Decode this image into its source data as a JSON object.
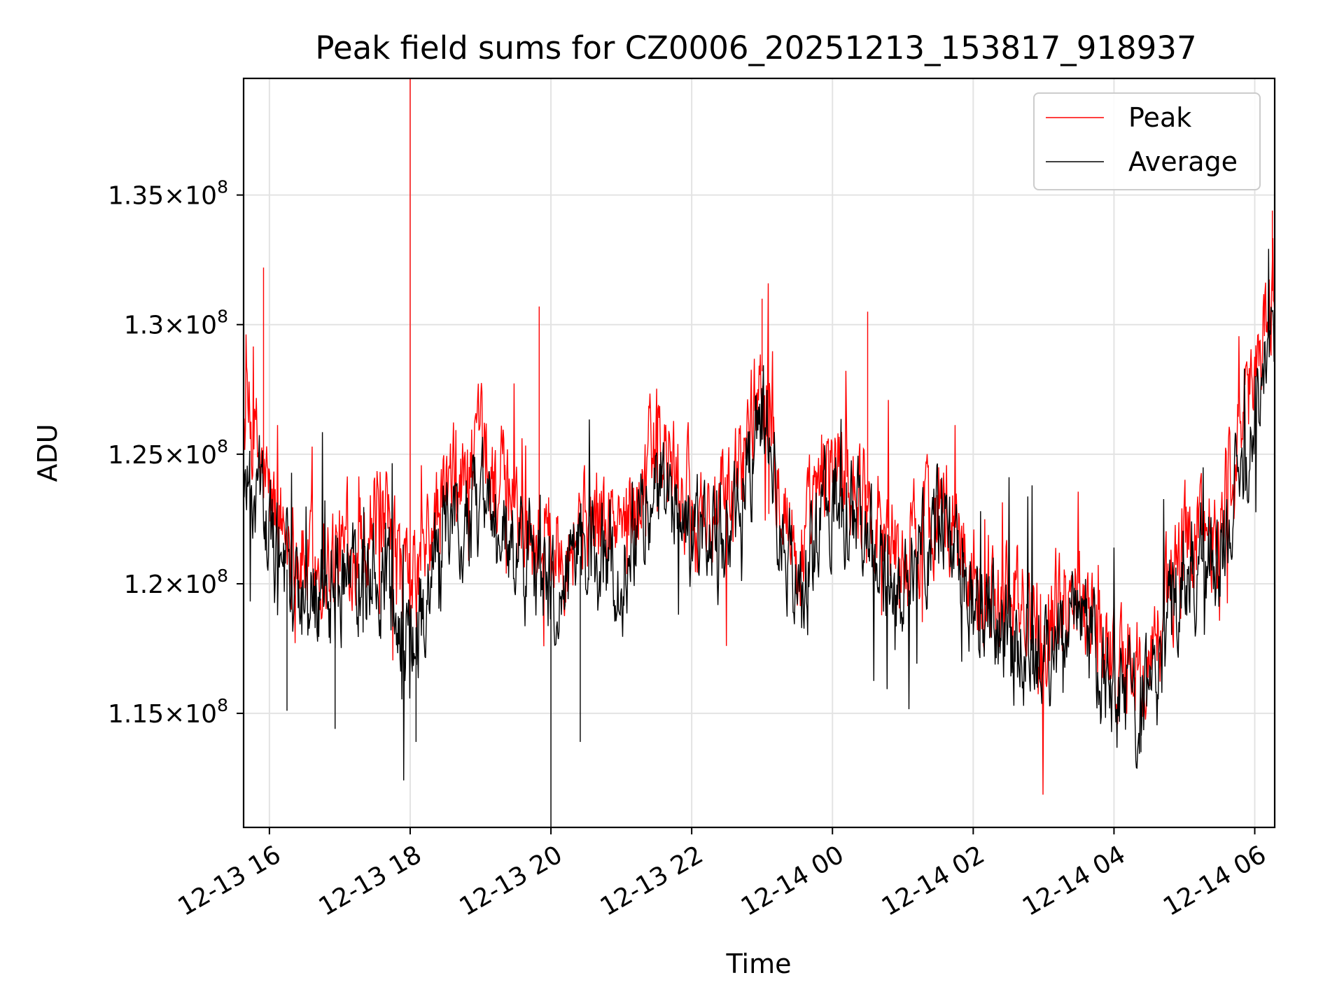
{
  "chart_data": {
    "type": "line",
    "title": "Peak field sums for CZ0006_20251213_153817_918937",
    "xlabel": "Time",
    "ylabel": "ADU",
    "x_start": "2025-12-13T15:38",
    "x_end": "2025-12-14T06:17",
    "xlim": [
      "2025-12-13T15:38",
      "2025-12-14T06:17"
    ],
    "ylim": [
      110600000,
      139500000
    ],
    "x_ticks": [
      {
        "label": "12-13 16",
        "value": "2025-12-13T16:00"
      },
      {
        "label": "12-13 18",
        "value": "2025-12-13T18:00"
      },
      {
        "label": "12-13 20",
        "value": "2025-12-13T20:00"
      },
      {
        "label": "12-13 22",
        "value": "2025-12-13T22:00"
      },
      {
        "label": "12-14 00",
        "value": "2025-12-14T00:00"
      },
      {
        "label": "12-14 02",
        "value": "2025-12-14T02:00"
      },
      {
        "label": "12-14 04",
        "value": "2025-12-14T04:00"
      },
      {
        "label": "12-14 06",
        "value": "2025-12-14T06:00"
      }
    ],
    "y_ticks": [
      {
        "mantissa": "1.15",
        "exponent": "8",
        "value": 115000000
      },
      {
        "mantissa": "1.2",
        "exponent": "8",
        "value": 120000000
      },
      {
        "mantissa": "1.25",
        "exponent": "8",
        "value": 125000000
      },
      {
        "mantissa": "1.3",
        "exponent": "8",
        "value": 130000000
      },
      {
        "mantissa": "1.35",
        "exponent": "8",
        "value": 135000000
      }
    ],
    "y_tick_times": "×10",
    "grid": true,
    "legend_position": "top-right",
    "series": [
      {
        "name": "Peak",
        "color": "#ff0000",
        "x": [
          "2025-12-13T15:38",
          "2025-12-13T16:00",
          "2025-12-13T16:30",
          "2025-12-13T17:00",
          "2025-12-13T17:30",
          "2025-12-13T18:00",
          "2025-12-13T18:30",
          "2025-12-13T19:00",
          "2025-12-13T19:30",
          "2025-12-13T20:00",
          "2025-12-13T20:30",
          "2025-12-13T21:00",
          "2025-12-13T21:30",
          "2025-12-13T22:00",
          "2025-12-13T22:30",
          "2025-12-13T23:00",
          "2025-12-13T23:30",
          "2025-12-14T00:00",
          "2025-12-14T00:30",
          "2025-12-14T01:00",
          "2025-12-14T01:30",
          "2025-12-14T02:00",
          "2025-12-14T02:30",
          "2025-12-14T03:00",
          "2025-12-14T03:30",
          "2025-12-14T04:00",
          "2025-12-14T04:30",
          "2025-12-14T05:00",
          "2025-12-14T05:30",
          "2025-12-14T06:00",
          "2025-12-14T06:17"
        ],
        "values": [
          126900000,
          123200000,
          120900000,
          121000000,
          122700000,
          119500000,
          123400000,
          124800000,
          122900000,
          121400000,
          122600000,
          122100000,
          125400000,
          122800000,
          122700000,
          128200000,
          120600000,
          124900000,
          123300000,
          120700000,
          123400000,
          120400000,
          119300000,
          118600000,
          120200000,
          117000000,
          116600000,
          121900000,
          122400000,
          128300000,
          131700000
        ],
        "spikes": [
          {
            "x": "2025-12-13T15:55",
            "value": 132200000
          },
          {
            "x": "2025-12-13T18:00",
            "value": 139500000
          },
          {
            "x": "2025-12-13T19:50",
            "value": 130700000
          },
          {
            "x": "2025-12-13T23:00",
            "value": 131000000
          },
          {
            "x": "2025-12-14T00:30",
            "value": 130500000
          },
          {
            "x": "2025-12-14T06:15",
            "value": 134400000
          }
        ]
      },
      {
        "name": "Average",
        "color": "#000000",
        "x": [
          "2025-12-13T15:38",
          "2025-12-13T16:00",
          "2025-12-13T16:30",
          "2025-12-13T17:00",
          "2025-12-13T17:30",
          "2025-12-13T18:00",
          "2025-12-13T18:30",
          "2025-12-13T19:00",
          "2025-12-13T19:30",
          "2025-12-13T20:00",
          "2025-12-13T20:30",
          "2025-12-13T21:00",
          "2025-12-13T21:30",
          "2025-12-13T22:00",
          "2025-12-13T22:30",
          "2025-12-13T23:00",
          "2025-12-13T23:30",
          "2025-12-14T00:00",
          "2025-12-14T00:30",
          "2025-12-14T01:00",
          "2025-12-14T01:30",
          "2025-12-14T02:00",
          "2025-12-14T02:30",
          "2025-12-14T03:00",
          "2025-12-14T03:30",
          "2025-12-14T04:00",
          "2025-12-14T04:30",
          "2025-12-14T05:00",
          "2025-12-14T05:30",
          "2025-12-14T06:00",
          "2025-12-14T06:17"
        ],
        "values": [
          124900000,
          121700000,
          119400000,
          119500000,
          121400000,
          117600000,
          121900000,
          123300000,
          121500000,
          119900000,
          121300000,
          120800000,
          124100000,
          121500000,
          121400000,
          126700000,
          119100000,
          123600000,
          122000000,
          119300000,
          122100000,
          119100000,
          117800000,
          117100000,
          118800000,
          115600000,
          115200000,
          120500000,
          121200000,
          126900000,
          130200000
        ],
        "spikes": [
          {
            "x": "2025-12-13T20:00",
            "value": 110600000
          },
          {
            "x": "2025-12-13T20:25",
            "value": 113900000
          },
          {
            "x": "2025-12-13T18:05",
            "value": 113900000
          },
          {
            "x": "2025-12-13T16:15",
            "value": 115100000
          },
          {
            "x": "2025-12-13T16:56",
            "value": 114400000
          },
          {
            "x": "2025-12-14T04:23",
            "value": 113500000
          }
        ]
      }
    ]
  }
}
